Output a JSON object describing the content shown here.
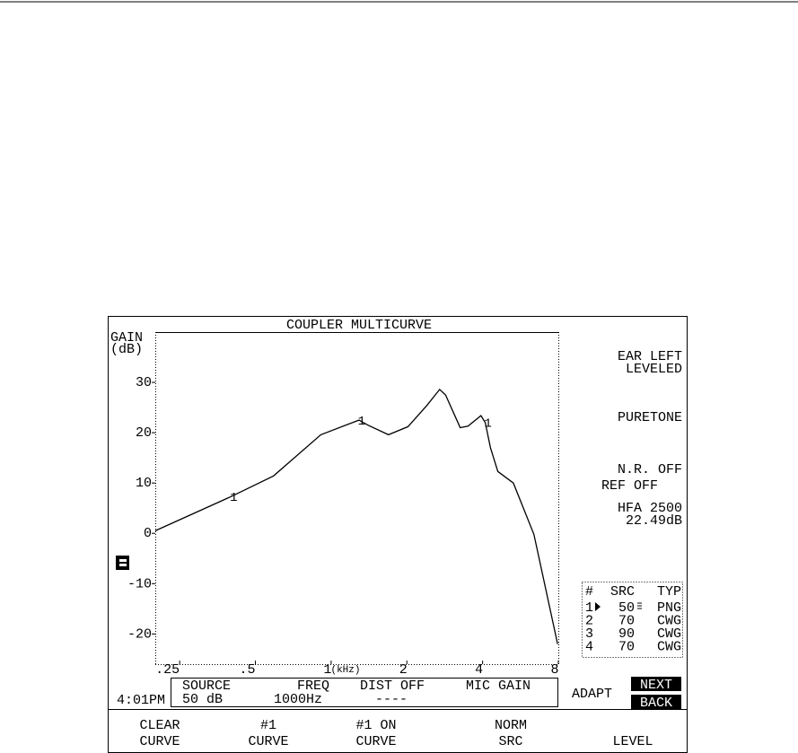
{
  "chart_data": {
    "type": "line",
    "title": "COUPLER MULTICURVE",
    "y_label": "GAIN",
    "y_unit": "(dB)",
    "x_label": "(kHz)",
    "log_x": true,
    "x": [
      0.2,
      0.4,
      0.59,
      0.91,
      1.29,
      1.4,
      1.69,
      2.02,
      2.4,
      2.7,
      2.85,
      3.26,
      3.5,
      3.94,
      4.1,
      4.3,
      4.6,
      5.3,
      6.4,
      7.95
    ],
    "series": [
      {
        "name": "1",
        "color": "#000000",
        "values": [
          0.5,
          7.3,
          11.4,
          19.6,
          22.5,
          21.5,
          19.6,
          21.2,
          25.4,
          28.6,
          27.5,
          21,
          21.3,
          23.4,
          22,
          17,
          12.3,
          10,
          -0.2,
          -22
        ]
      }
    ],
    "xlim": [
      0.2,
      8
    ],
    "ylim": [
      -26,
      40
    ],
    "xticks": [
      {
        "value": 0.25,
        "label": ".25"
      },
      {
        "value": 0.5,
        "label": ".5"
      },
      1,
      2,
      4,
      8
    ],
    "yticks": [
      30,
      20,
      10,
      0,
      -10,
      -20
    ]
  },
  "status": {
    "ear": "EAR  LEFT",
    "leveled": "LEVELED",
    "signal": "PURETONE",
    "nr": "N.R.  OFF",
    "ref": "REF OFF",
    "hfa": "HFA 2500",
    "hfa_value": "22.49dB"
  },
  "source_table": {
    "header": [
      "#",
      "SRC",
      "TYP"
    ],
    "rows": [
      [
        "1",
        "50",
        "PNG"
      ],
      [
        "2",
        "70",
        "CWG"
      ],
      [
        "3",
        "90",
        "CWG"
      ],
      [
        "4",
        "70",
        "CWG"
      ]
    ]
  },
  "settings": {
    "source_label": "SOURCE",
    "source_value": "50 dB",
    "freq_label": "FREQ",
    "freq_value": "1000Hz",
    "dist_label": "DIST OFF",
    "dist_value": "----",
    "mic_label": "MIC GAIN"
  },
  "time": "4:01PM",
  "adapt": "ADAPT",
  "next": "NEXT",
  "back": "BACK",
  "menu": [
    [
      "CLEAR",
      "CURVE"
    ],
    [
      "#1",
      "CURVE"
    ],
    [
      "#1 ON",
      "CURVE"
    ],
    [
      "NORM",
      "SRC"
    ],
    [
      "",
      "LEVEL"
    ]
  ]
}
